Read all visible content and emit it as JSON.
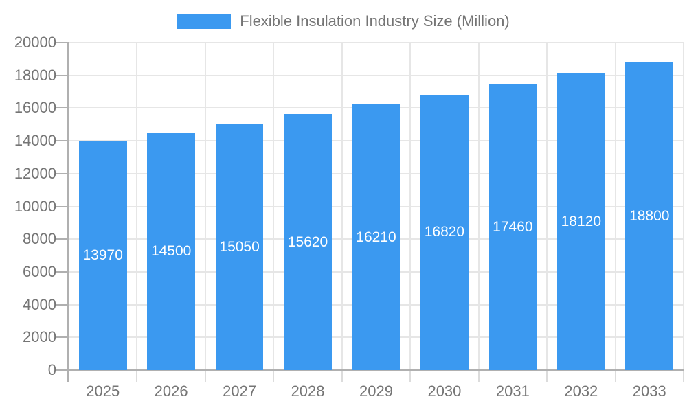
{
  "colors": {
    "bar": "#3b99f0",
    "grid": "#e6e6e6",
    "axis": "#b0b0b0",
    "x_tick": "#dcdcdc",
    "y_tick": "#b0b0b0",
    "label_text": "#757575",
    "bar_label_text": "#ffffff",
    "background": "#ffffff"
  },
  "legend": {
    "label": "Flexible Insulation Industry Size (Million)",
    "position": "top-center"
  },
  "chart_data": {
    "type": "bar",
    "title": "Flexible Insulation Industry Size (Million)",
    "categories": [
      "2025",
      "2026",
      "2027",
      "2028",
      "2029",
      "2030",
      "2031",
      "2032",
      "2033"
    ],
    "values": [
      13970,
      14500,
      15050,
      15620,
      16210,
      16820,
      17460,
      18120,
      18800
    ],
    "series_name": "Flexible Insulation Industry Size (Million)",
    "xlabel": "",
    "ylabel": "",
    "ylim": [
      0,
      20000
    ],
    "ytick_step": 2000,
    "yticks": [
      0,
      2000,
      4000,
      6000,
      8000,
      10000,
      12000,
      14000,
      16000,
      18000,
      20000
    ],
    "grid": true,
    "legend_position": "top",
    "data_labels": "inside-center"
  }
}
